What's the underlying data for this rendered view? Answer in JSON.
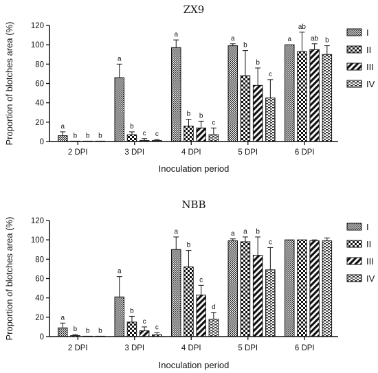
{
  "chart_data": [
    {
      "type": "bar",
      "title": "ZX9",
      "xlabel": "Inoculation period",
      "ylabel": "Proportion of blotches area (%)",
      "ylim": [
        0,
        120
      ],
      "yticks": [
        0,
        20,
        40,
        60,
        80,
        100,
        120
      ],
      "categories": [
        "2 DPI",
        "3 DPI",
        "4 DPI",
        "5 DPI",
        "6 DPI"
      ],
      "legend_position": "right",
      "series": [
        {
          "name": "I",
          "pattern": "dots",
          "values": [
            6,
            66,
            97,
            99,
            100
          ],
          "errors": [
            4,
            14,
            8,
            2,
            0
          ],
          "letters": [
            "a",
            "a",
            "a",
            "a",
            "a"
          ]
        },
        {
          "name": "II",
          "pattern": "checker",
          "values": [
            0.3,
            7,
            16,
            68,
            93
          ],
          "errors": [
            0,
            3,
            7,
            26,
            20
          ],
          "letters": [
            "b",
            "b",
            "b",
            "b",
            "ab"
          ]
        },
        {
          "name": "III",
          "pattern": "diagonal",
          "values": [
            0.2,
            1,
            14,
            58,
            95
          ],
          "errors": [
            0,
            2,
            7,
            18,
            6
          ],
          "letters": [
            "b",
            "c",
            "b",
            "b",
            "ab"
          ]
        },
        {
          "name": "IV",
          "pattern": "dashes",
          "values": [
            0.2,
            1,
            7,
            45,
            90
          ],
          "errors": [
            0,
            1,
            7,
            19,
            9
          ],
          "letters": [
            "b",
            "c",
            "c",
            "c",
            "b"
          ]
        }
      ]
    },
    {
      "type": "bar",
      "title": "NBB",
      "xlabel": "Inoculation period",
      "ylabel": "Proportion of blotches area (%)",
      "ylim": [
        0,
        120
      ],
      "yticks": [
        0,
        20,
        40,
        60,
        80,
        100,
        120
      ],
      "categories": [
        "2 DPI",
        "3 DPI",
        "4 DPI",
        "5 DPI",
        "6 DPI"
      ],
      "legend_position": "right",
      "series": [
        {
          "name": "I",
          "pattern": "dots",
          "values": [
            9,
            41,
            90,
            99,
            100
          ],
          "errors": [
            5,
            21,
            13,
            2,
            0
          ],
          "letters": [
            "a",
            "a",
            "a",
            "a",
            ""
          ]
        },
        {
          "name": "II",
          "pattern": "checker",
          "values": [
            1,
            15,
            72,
            98,
            100
          ],
          "errors": [
            1,
            6,
            17,
            5,
            0
          ],
          "letters": [
            "b",
            "b",
            "b",
            "a",
            ""
          ]
        },
        {
          "name": "III",
          "pattern": "diagonal",
          "values": [
            0.3,
            6,
            43,
            84,
            99
          ],
          "errors": [
            0,
            4,
            10,
            19,
            1
          ],
          "letters": [
            "b",
            "c",
            "c",
            "b",
            ""
          ]
        },
        {
          "name": "IV",
          "pattern": "dashes",
          "values": [
            0.2,
            2,
            18,
            69,
            99
          ],
          "errors": [
            0,
            2,
            7,
            23,
            3
          ],
          "letters": [
            "b",
            "c",
            "d",
            "c",
            ""
          ]
        }
      ]
    }
  ]
}
